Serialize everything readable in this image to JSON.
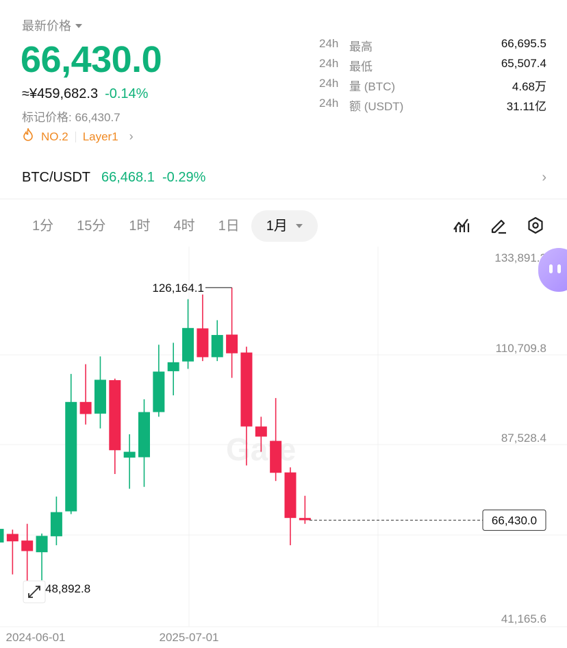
{
  "header": {
    "price_label": "最新价格",
    "last_price": "66,430.0",
    "cny_price": "≈¥459,682.3",
    "change_pct": "-0.14%",
    "mark_price": "标记价格: 66,430.7",
    "rank_tag": "NO.2",
    "category_tag": "Layer1"
  },
  "stats": [
    {
      "period": "24h",
      "label": "最高",
      "value": "66,695.5"
    },
    {
      "period": "24h",
      "label": "最低",
      "value": "65,507.4"
    },
    {
      "period": "24h",
      "label": "量 (BTC)",
      "value": "4.68万"
    },
    {
      "period": "24h",
      "label": "额 (USDT)",
      "value": "31.11亿"
    }
  ],
  "pair": {
    "name": "BTC/USDT",
    "price": "66,468.1",
    "change": "-0.29%"
  },
  "timeframes": [
    "1分",
    "15分",
    "1时",
    "4时",
    "1日"
  ],
  "active_timeframe": "1月",
  "colors": {
    "up": "#0fb27a",
    "down": "#f0264f",
    "accent": "#f08a24"
  },
  "icons": [
    "indicators-icon",
    "draw-icon",
    "settings-icon",
    "fullscreen-icon"
  ],
  "chart_data": {
    "type": "candlestick",
    "watermark": "Gate",
    "y_axis": {
      "labels": [
        "133,891.2",
        "110,709.8",
        "87,528.4",
        "66,430.0",
        "41,165.6"
      ],
      "ylim": [
        41165.6,
        133891.2
      ]
    },
    "x_axis": {
      "labels": [
        "2024-06-01",
        "2025-07-01"
      ]
    },
    "current_price_label": "66,430.0",
    "high_callout": "126,164.1",
    "low_callout": "48,892.8",
    "candles": [
      {
        "o": 60700,
        "h": 67000,
        "l": 56500,
        "c": 64200
      },
      {
        "o": 62900,
        "h": 64000,
        "l": 52500,
        "c": 61000
      },
      {
        "o": 61200,
        "h": 65500,
        "l": 48892.8,
        "c": 58500
      },
      {
        "o": 58200,
        "h": 63000,
        "l": 51000,
        "c": 62400
      },
      {
        "o": 62300,
        "h": 72500,
        "l": 60000,
        "c": 68500
      },
      {
        "o": 68700,
        "h": 104000,
        "l": 68000,
        "c": 96800
      },
      {
        "o": 96800,
        "h": 106500,
        "l": 91000,
        "c": 93700
      },
      {
        "o": 93800,
        "h": 108500,
        "l": 90000,
        "c": 102500
      },
      {
        "o": 102400,
        "h": 102800,
        "l": 78300,
        "c": 84400
      },
      {
        "o": 82500,
        "h": 88500,
        "l": 74500,
        "c": 84000
      },
      {
        "o": 82600,
        "h": 97500,
        "l": 75000,
        "c": 94200
      },
      {
        "o": 94200,
        "h": 111500,
        "l": 93000,
        "c": 104600
      },
      {
        "o": 104700,
        "h": 112000,
        "l": 98500,
        "c": 107000
      },
      {
        "o": 107200,
        "h": 123200,
        "l": 105300,
        "c": 115800
      },
      {
        "o": 115700,
        "h": 124400,
        "l": 107300,
        "c": 108300
      },
      {
        "o": 108300,
        "h": 117800,
        "l": 107300,
        "c": 114000
      },
      {
        "o": 114100,
        "h": 126164.1,
        "l": 103000,
        "c": 109300
      },
      {
        "o": 109500,
        "h": 111000,
        "l": 80500,
        "c": 90500
      },
      {
        "o": 90500,
        "h": 93000,
        "l": 84000,
        "c": 87900
      },
      {
        "o": 86800,
        "h": 97800,
        "l": 76500,
        "c": 78600
      },
      {
        "o": 78700,
        "h": 80000,
        "l": 60000,
        "c": 67000
      },
      {
        "o": 67000,
        "h": 72700,
        "l": 65500,
        "c": 66430
      }
    ]
  }
}
